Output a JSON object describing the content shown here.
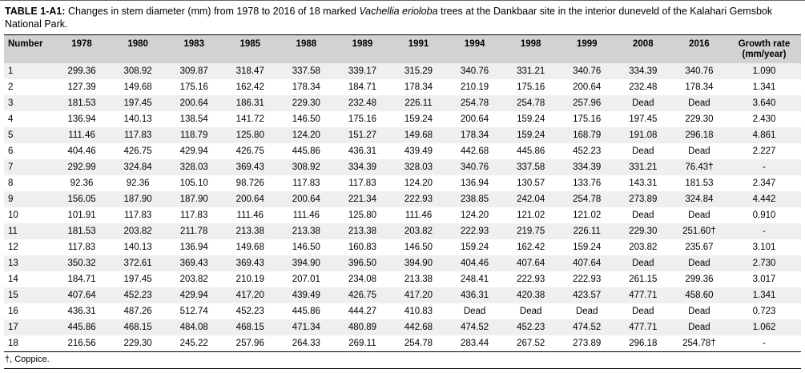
{
  "caption": {
    "label": "TABLE 1-A1:",
    "text_1": " Changes in stem diameter (mm) from 1978 to 2016 of 18 marked ",
    "species": "Vachellia erioloba",
    "text_2": " trees at the Dankbaar site in the interior duneveld of the Kalahari Gemsbok National Park."
  },
  "footnote": "†, Coppice.",
  "table": {
    "columns": [
      "Number",
      "1978",
      "1980",
      "1983",
      "1985",
      "1988",
      "1989",
      "1991",
      "1994",
      "1998",
      "1999",
      "2008",
      "2016",
      "Growth rate (mm/year)"
    ],
    "rows": [
      [
        "1",
        "299.36",
        "308.92",
        "309.87",
        "318.47",
        "337.58",
        "339.17",
        "315.29",
        "340.76",
        "331.21",
        "340.76",
        "334.39",
        "340.76",
        "1.090"
      ],
      [
        "2",
        "127.39",
        "149.68",
        "175.16",
        "162.42",
        "178.34",
        "184.71",
        "178.34",
        "210.19",
        "175.16",
        "200.64",
        "232.48",
        "178.34",
        "1.341"
      ],
      [
        "3",
        "181.53",
        "197.45",
        "200.64",
        "186.31",
        "229.30",
        "232.48",
        "226.11",
        "254.78",
        "254.78",
        "257.96",
        "Dead",
        "Dead",
        "3.640"
      ],
      [
        "4",
        "136.94",
        "140.13",
        "138.54",
        "141.72",
        "146.50",
        "175.16",
        "159.24",
        "200.64",
        "159.24",
        "175.16",
        "197.45",
        "229.30",
        "2.430"
      ],
      [
        "5",
        "111.46",
        "117.83",
        "118.79",
        "125.80",
        "124.20",
        "151.27",
        "149.68",
        "178.34",
        "159.24",
        "168.79",
        "191.08",
        "296.18",
        "4.861"
      ],
      [
        "6",
        "404.46",
        "426.75",
        "429.94",
        "426.75",
        "445.86",
        "436.31",
        "439.49",
        "442.68",
        "445.86",
        "452.23",
        "Dead",
        "Dead",
        "2.227"
      ],
      [
        "7",
        "292.99",
        "324.84",
        "328.03",
        "369.43",
        "308.92",
        "334.39",
        "328.03",
        "340.76",
        "337.58",
        "334.39",
        "331.21",
        "76.43†",
        "-"
      ],
      [
        "8",
        "92.36",
        "92.36",
        "105.10",
        "98.726",
        "117.83",
        "117.83",
        "124.20",
        "136.94",
        "130.57",
        "133.76",
        "143.31",
        "181.53",
        "2.347"
      ],
      [
        "9",
        "156.05",
        "187.90",
        "187.90",
        "200.64",
        "200.64",
        "221.34",
        "222.93",
        "238.85",
        "242.04",
        "254.78",
        "273.89",
        "324.84",
        "4.442"
      ],
      [
        "10",
        "101.91",
        "117.83",
        "117.83",
        "111.46",
        "111.46",
        "125.80",
        "111.46",
        "124.20",
        "121.02",
        "121.02",
        "Dead",
        "Dead",
        "0.910"
      ],
      [
        "11",
        "181.53",
        "203.82",
        "211.78",
        "213.38",
        "213.38",
        "213.38",
        "203.82",
        "222.93",
        "219.75",
        "226.11",
        "229.30",
        "251.60†",
        "-"
      ],
      [
        "12",
        "117.83",
        "140.13",
        "136.94",
        "149.68",
        "146.50",
        "160.83",
        "146.50",
        "159.24",
        "162.42",
        "159.24",
        "203.82",
        "235.67",
        "3.101"
      ],
      [
        "13",
        "350.32",
        "372.61",
        "369.43",
        "369.43",
        "394.90",
        "396.50",
        "394.90",
        "404.46",
        "407.64",
        "407.64",
        "Dead",
        "Dead",
        "2.730"
      ],
      [
        "14",
        "184.71",
        "197.45",
        "203.82",
        "210.19",
        "207.01",
        "234.08",
        "213.38",
        "248.41",
        "222.93",
        "222.93",
        "261.15",
        "299.36",
        "3.017"
      ],
      [
        "15",
        "407.64",
        "452.23",
        "429.94",
        "417.20",
        "439.49",
        "426.75",
        "417.20",
        "436.31",
        "420.38",
        "423.57",
        "477.71",
        "458.60",
        "1.341"
      ],
      [
        "16",
        "436.31",
        "487.26",
        "512.74",
        "452.23",
        "445.86",
        "444.27",
        "410.83",
        "Dead",
        "Dead",
        "Dead",
        "Dead",
        "Dead",
        "0.723"
      ],
      [
        "17",
        "445.86",
        "468.15",
        "484.08",
        "468.15",
        "471.34",
        "480.89",
        "442.68",
        "474.52",
        "452.23",
        "474.52",
        "477.71",
        "Dead",
        "1.062"
      ],
      [
        "18",
        "216.56",
        "229.30",
        "245.22",
        "257.96",
        "264.33",
        "269.11",
        "254.78",
        "283.44",
        "267.52",
        "273.89",
        "296.18",
        "254.78†",
        "-"
      ]
    ]
  }
}
